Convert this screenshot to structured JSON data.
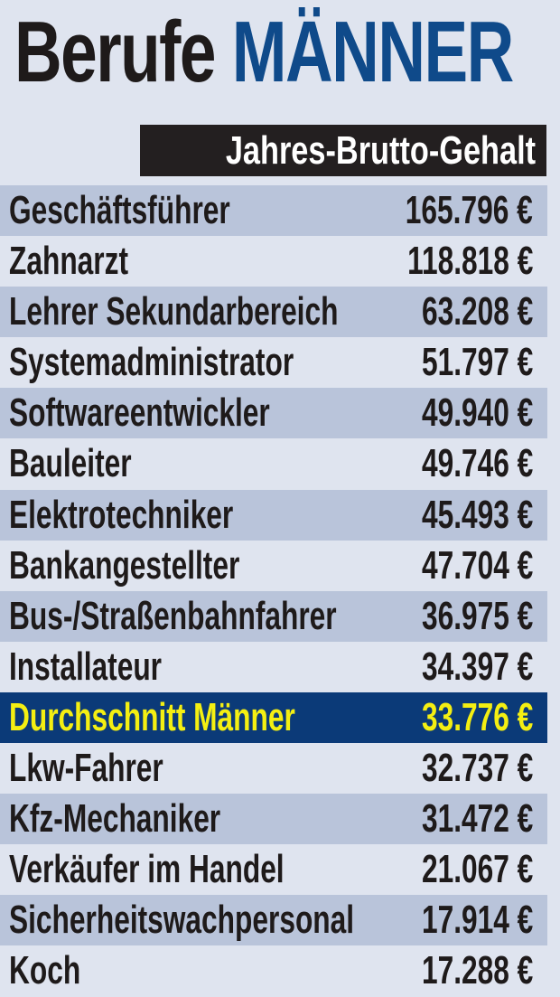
{
  "title": {
    "part1": "Berufe",
    "part2": "MÄNNER"
  },
  "chart_data": {
    "type": "table",
    "column_header": "Jahres-Brutto-Gehalt",
    "highlight_color": "#0b3a78",
    "highlight_text_color": "#f4ef12",
    "rows": [
      {
        "label": "Geschäftsführer",
        "value": "165.796 €"
      },
      {
        "label": "Zahnarzt",
        "value": "118.818 €"
      },
      {
        "label": "Lehrer Sekundarbereich",
        "value": "63.208 €"
      },
      {
        "label": "Systemadministrator",
        "value": "51.797 €"
      },
      {
        "label": "Softwareentwickler",
        "value": "49.940 €"
      },
      {
        "label": "Bauleiter",
        "value": "49.746 €"
      },
      {
        "label": "Elektrotechniker",
        "value": "45.493 €"
      },
      {
        "label": "Bankangestellter",
        "value": "47.704 €"
      },
      {
        "label": "Bus-/Straßenbahnfahrer",
        "value": "36.975 €"
      },
      {
        "label": "Installateur",
        "value": "34.397 €"
      },
      {
        "label": "Durchschnitt Männer",
        "value": "33.776 €",
        "highlight": true
      },
      {
        "label": "Lkw-Fahrer",
        "value": "32.737 €"
      },
      {
        "label": "Kfz-Mechaniker",
        "value": "31.472 €"
      },
      {
        "label": "Verkäufer im Handel",
        "value": "21.067 €"
      },
      {
        "label": "Sicherheitswachpersonal",
        "value": "17.914 €"
      },
      {
        "label": "Koch",
        "value": "17.288 €"
      }
    ]
  }
}
